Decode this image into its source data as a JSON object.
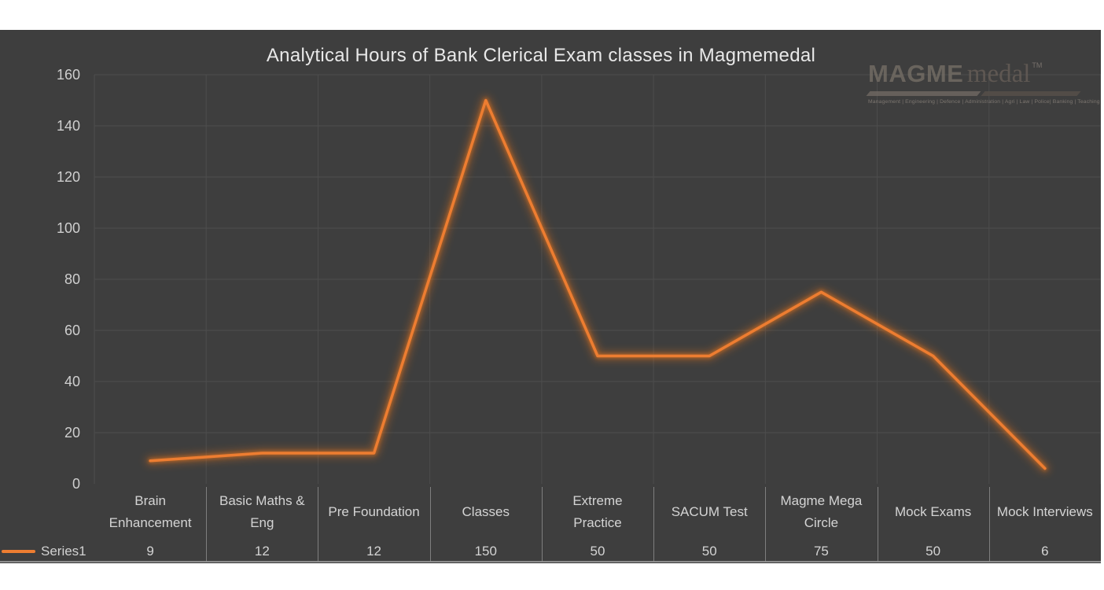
{
  "page": {
    "background": "#ffffff",
    "slide_background": "#3E3E3E"
  },
  "chart_data": {
    "type": "line",
    "title": "Analytical Hours of Bank Clerical Exam classes in Magmemedal",
    "categories": [
      "Brain Enhancement",
      "Basic Maths & Eng",
      "Pre Foundation",
      "Classes",
      "Extreme Practice",
      "SACUM Test",
      "Magme Mega Circle",
      "Mock Exams",
      "Mock Interviews"
    ],
    "series": [
      {
        "name": "Series1",
        "values": [
          9,
          12,
          12,
          150,
          50,
          50,
          75,
          50,
          6
        ]
      }
    ],
    "ylim": [
      0,
      160
    ],
    "yticks": [
      0,
      20,
      40,
      60,
      80,
      100,
      120,
      140,
      160
    ],
    "grid": true,
    "legend_position": "bottom-left",
    "data_table_shown": true,
    "xlabel": "",
    "ylabel": "",
    "colors": {
      "line": "#ED7D31",
      "glow": "#E8751A",
      "gridline": "#4D4D4D",
      "table_separator": "#7E7E7E",
      "table_bottom_border": "#9A9A9A",
      "label": "#D4D4D4",
      "tick_label": "#CFCFCF",
      "title": "#E8E8E8"
    }
  },
  "legend": {
    "label": "Series1"
  },
  "logo": {
    "brand_primary": "MAGME",
    "brand_secondary": "medal",
    "trademark": "TM",
    "tagline": "Management | Engineering | Defence | Administration | Agri | Law | Police| Banking | Teaching"
  }
}
